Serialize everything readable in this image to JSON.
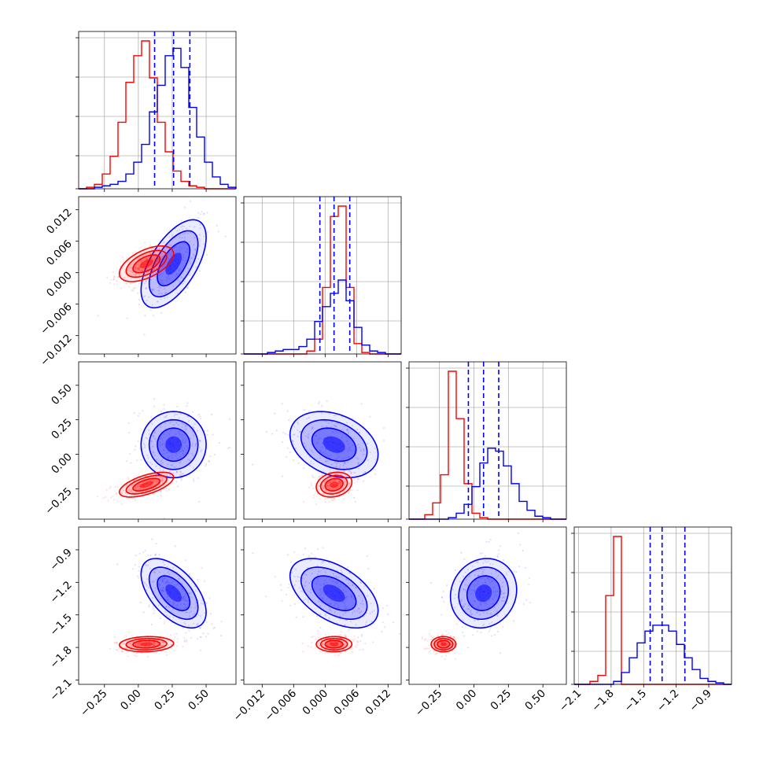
{
  "chart_data": {
    "type": "corner",
    "parameters": 4,
    "grid": true,
    "series": [
      {
        "color": "#ff0000"
      },
      {
        "color": "#0000ff"
      }
    ],
    "quantile_lines": {
      "color": "#0000ff",
      "style": "dashed",
      "values": [
        [
          0.12,
          0.26,
          0.38
        ],
        [
          -0.001,
          0.0017,
          0.0047
        ],
        [
          -0.04,
          0.07,
          0.18
        ],
        [
          -1.44,
          -1.33,
          -1.12
        ]
      ]
    },
    "axes": [
      {
        "range": [
          -0.44,
          0.72
        ],
        "ticks": [
          "−0.25",
          "0.00",
          "0.25",
          "0.50"
        ],
        "tick_values": [
          -0.25,
          0.0,
          0.25,
          0.5
        ]
      },
      {
        "range": [
          -0.0155,
          0.0145
        ],
        "ticks": [
          "−0.012",
          "−0.006",
          "0.000",
          "0.006",
          "0.012"
        ],
        "tick_values": [
          -0.012,
          -0.006,
          0.0,
          0.006,
          0.012
        ]
      },
      {
        "range": [
          -0.47,
          0.67
        ],
        "ticks": [
          "−0.25",
          "0.00",
          "0.25",
          "0.50"
        ],
        "tick_values": [
          -0.25,
          0.0,
          0.25,
          0.5
        ]
      },
      {
        "range": [
          -2.14,
          -0.69
        ],
        "ticks": [
          "−2.1",
          "−1.8",
          "−1.5",
          "−1.2",
          "−0.9"
        ],
        "tick_values": [
          -2.1,
          -1.8,
          -1.5,
          -1.2,
          -0.9
        ]
      }
    ],
    "histograms": [
      {
        "bins": [
          -0.44,
          -0.382,
          -0.324,
          -0.266,
          -0.208,
          -0.15,
          -0.092,
          -0.034,
          0.024,
          0.082,
          0.14,
          0.198,
          0.256,
          0.314,
          0.372,
          0.43,
          0.488,
          0.546,
          0.604,
          0.662,
          0.72
        ],
        "red": [
          0,
          1,
          3,
          10,
          22,
          45,
          72,
          90,
          100,
          75,
          45,
          25,
          12,
          5,
          2,
          1,
          0,
          0,
          0,
          0
        ],
        "blue": [
          0,
          0,
          1,
          2,
          3,
          5,
          10,
          18,
          30,
          52,
          70,
          90,
          95,
          82,
          55,
          35,
          18,
          8,
          3,
          1
        ]
      },
      {
        "bins": [
          -0.0155,
          -0.014,
          -0.0125,
          -0.011,
          -0.0095,
          -0.008,
          -0.0065,
          -0.005,
          -0.0035,
          -0.002,
          -0.0005,
          0.001,
          0.0025,
          0.004,
          0.0055,
          0.007,
          0.0085,
          0.01,
          0.0115,
          0.013,
          0.0145
        ],
        "red": [
          0,
          0,
          0,
          0,
          0,
          0,
          0,
          0,
          2,
          10,
          45,
          93,
          100,
          45,
          7,
          1,
          0,
          0,
          0,
          0
        ],
        "blue": [
          0,
          0,
          0,
          1,
          2,
          3,
          3,
          5,
          10,
          22,
          32,
          41,
          50,
          36,
          18,
          6,
          2,
          1,
          0,
          0
        ]
      },
      {
        "bins": [
          -0.47,
          -0.413,
          -0.356,
          -0.299,
          -0.242,
          -0.185,
          -0.128,
          -0.071,
          -0.014,
          0.043,
          0.1,
          0.157,
          0.214,
          0.271,
          0.328,
          0.385,
          0.442,
          0.499,
          0.556,
          0.613,
          0.67
        ],
        "red": [
          0,
          0,
          3,
          11,
          30,
          100,
          68,
          24,
          4,
          1,
          0,
          0,
          0,
          0,
          0,
          0,
          0,
          0,
          0,
          0
        ],
        "blue": [
          0,
          0,
          0,
          0,
          0,
          1,
          4,
          10,
          22,
          38,
          48,
          46,
          36,
          24,
          12,
          6,
          2,
          1,
          0,
          0
        ]
      },
      {
        "bins": [
          -2.14,
          -2.0675,
          -1.995,
          -1.9225,
          -1.85,
          -1.7775,
          -1.705,
          -1.6325,
          -1.56,
          -1.4875,
          -1.415,
          -1.3425,
          -1.27,
          -1.1975,
          -1.125,
          -1.0525,
          -0.98,
          -0.9075,
          -0.835,
          -0.7625,
          -0.69
        ],
        "red": [
          0,
          0,
          2,
          6,
          60,
          100,
          0,
          0,
          0,
          0,
          0,
          0,
          0,
          0,
          0,
          0,
          0,
          0,
          0,
          0
        ],
        "blue": [
          0,
          0,
          0,
          0,
          0,
          2,
          8,
          18,
          28,
          36,
          40,
          40,
          36,
          27,
          18,
          10,
          4,
          2,
          1,
          0
        ]
      }
    ],
    "distributions": {
      "red": {
        "means": [
          0.06,
          0.0017,
          -0.22,
          -1.77
        ],
        "stds": [
          0.1,
          0.0017,
          0.045,
          0.035
        ],
        "corr": [
          [
            0,
            1,
            0.55
          ],
          [
            0,
            2,
            0.6
          ],
          [
            0,
            3,
            0.1
          ],
          [
            1,
            2,
            0.2
          ],
          [
            1,
            3,
            0.0
          ],
          [
            2,
            3,
            0.0
          ]
        ]
      },
      "blue": {
        "means": [
          0.26,
          0.0017,
          0.07,
          -1.3
        ],
        "stds": [
          0.12,
          0.0042,
          0.12,
          0.16
        ],
        "corr": [
          [
            0,
            1,
            0.6
          ],
          [
            0,
            2,
            0.0
          ],
          [
            0,
            3,
            -0.55
          ],
          [
            1,
            2,
            -0.3
          ],
          [
            1,
            3,
            -0.5
          ],
          [
            2,
            3,
            0.1
          ]
        ]
      }
    }
  }
}
